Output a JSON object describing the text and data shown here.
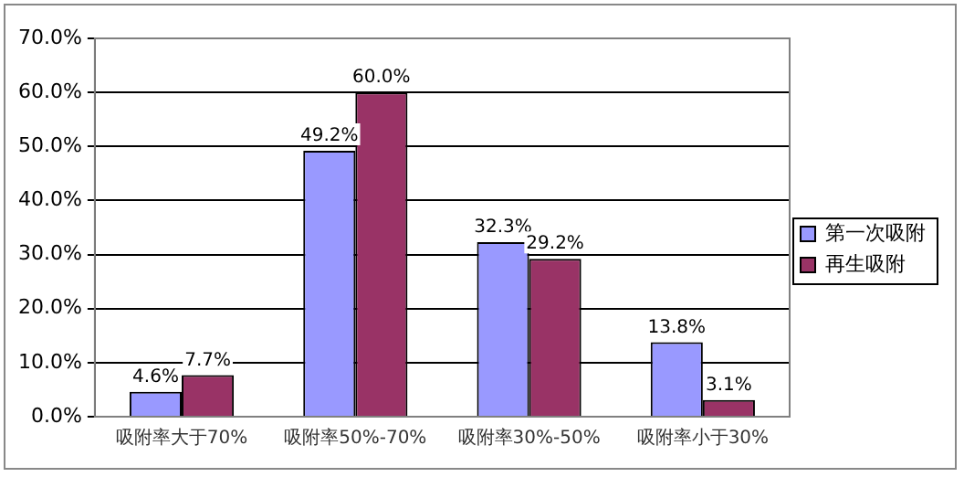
{
  "chart_data": {
    "type": "bar",
    "categories": [
      "吸附率大于70%",
      "吸附率50%-70%",
      "吸附率30%-50%",
      "吸附率小于30%"
    ],
    "series": [
      {
        "name": "第一次吸附",
        "color": "#9999ff",
        "values": [
          4.6,
          49.2,
          32.3,
          13.8
        ],
        "value_labels": [
          "4.6%",
          "49.2%",
          "32.3%",
          "13.8%"
        ]
      },
      {
        "name": "再生吸附",
        "color": "#993366",
        "values": [
          7.7,
          60.0,
          29.2,
          3.1
        ],
        "value_labels": [
          "7.7%",
          "60.0%",
          "29.2%",
          "3.1%"
        ]
      }
    ],
    "ylim": [
      0,
      70
    ],
    "yticks": [
      {
        "value": 0,
        "label": "0.0%"
      },
      {
        "value": 10,
        "label": "10.0%"
      },
      {
        "value": 20,
        "label": "20.0%"
      },
      {
        "value": 30,
        "label": "30.0%"
      },
      {
        "value": 40,
        "label": "40.0%"
      },
      {
        "value": 50,
        "label": "50.0%"
      },
      {
        "value": 60,
        "label": "60.0%"
      },
      {
        "value": 70,
        "label": "70.0%"
      }
    ],
    "grid": "y",
    "legend": "right"
  }
}
